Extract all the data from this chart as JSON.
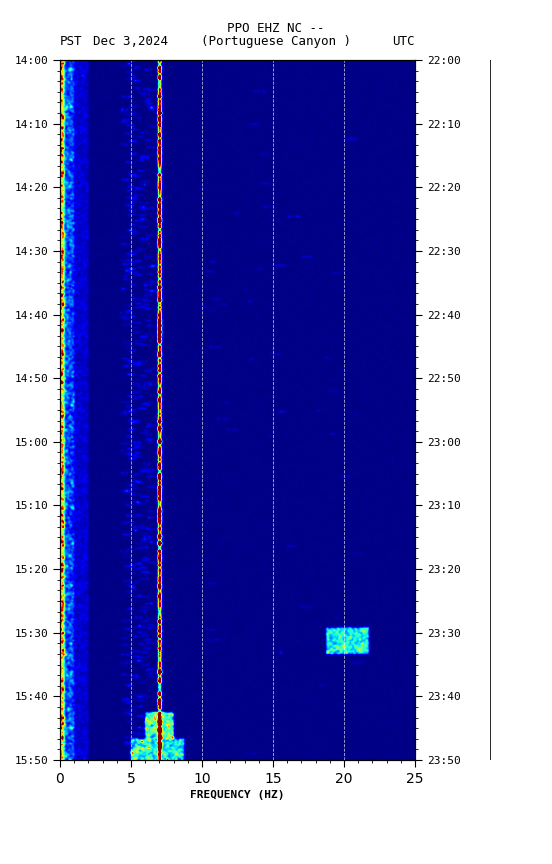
{
  "title_line1": "PPO EHZ NC --",
  "title_line2": "(Portuguese Canyon )",
  "date_label": "Dec 3,2024",
  "left_tz": "PST",
  "right_tz": "UTC",
  "left_times": [
    "14:00",
    "14:10",
    "14:20",
    "14:30",
    "14:40",
    "14:50",
    "15:00",
    "15:10",
    "15:20",
    "15:30",
    "15:40",
    "15:50"
  ],
  "right_times": [
    "22:00",
    "22:10",
    "22:20",
    "22:30",
    "22:40",
    "22:50",
    "23:00",
    "23:10",
    "23:20",
    "23:30",
    "23:40",
    "23:50"
  ],
  "freq_min": 0,
  "freq_max": 25,
  "freq_label": "FREQUENCY (HZ)",
  "n_time": 660,
  "n_freq": 500,
  "background_color": "#ffffff",
  "seed": 42,
  "fig_width": 5.52,
  "fig_height": 8.64,
  "dpi": 100
}
